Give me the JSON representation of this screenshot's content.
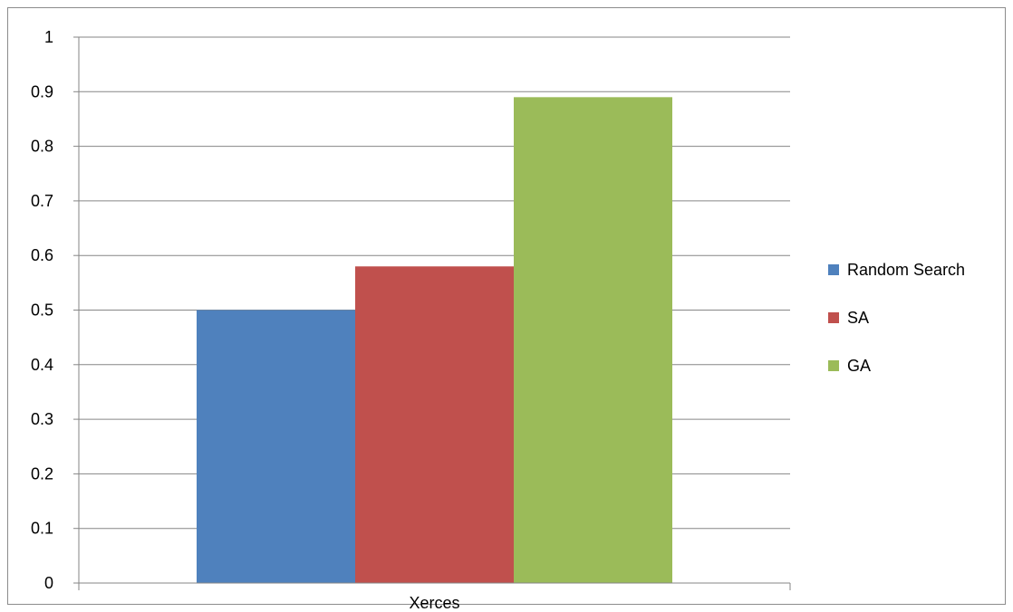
{
  "chart_data": {
    "type": "bar",
    "categories": [
      "Xerces"
    ],
    "series": [
      {
        "name": "Random Search",
        "values": [
          0.5
        ],
        "color": "#4f81bd"
      },
      {
        "name": "SA",
        "values": [
          0.58
        ],
        "color": "#c0504d"
      },
      {
        "name": "GA",
        "values": [
          0.89
        ],
        "color": "#9bbb59"
      }
    ],
    "title": "",
    "xlabel": "",
    "ylabel": "",
    "ylim": [
      0,
      1
    ],
    "yticks": [
      "0",
      "0.1",
      "0.2",
      "0.3",
      "0.4",
      "0.5",
      "0.6",
      "0.7",
      "0.8",
      "0.9",
      "1"
    ],
    "grid": true,
    "legend_position": "right"
  }
}
